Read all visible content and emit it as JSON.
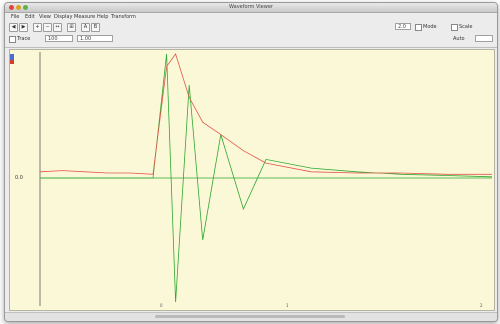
{
  "window": {
    "title": "Waveform Viewer"
  },
  "menu": {
    "items": [
      "File",
      "Edit",
      "View",
      "Display",
      "Measure",
      "Help",
      "Transform"
    ]
  },
  "toolbar": {
    "tools": [
      "◀",
      "▶",
      "+",
      "−",
      "↔",
      "⊞",
      "A",
      "B"
    ],
    "fields": {
      "left_value": "100",
      "right_value": "1.00",
      "top_value": "2.0"
    },
    "labels": {
      "mode": "Mode",
      "scale": "Scale",
      "auto": "Auto",
      "trace": "Trace"
    }
  },
  "plot": {
    "y_label": "0.0",
    "bottom_labels": [
      "0",
      "1",
      "2"
    ],
    "colors": {
      "background": "#fbf8d8",
      "green_trace": "#2fa830",
      "red_trace": "#e2574a",
      "axis": "#5a5a5a"
    }
  },
  "chart_data": {
    "type": "line",
    "x": [
      0,
      0.05,
      0.1,
      0.15,
      0.2,
      0.25,
      0.28,
      0.3,
      0.33,
      0.36,
      0.4,
      0.45,
      0.5,
      0.6,
      0.7,
      0.8,
      0.9,
      1.0
    ],
    "series": [
      {
        "values": [
          0.0,
          0.0,
          0.0,
          0.0,
          0.0,
          0.0,
          1.0,
          -1.0,
          0.75,
          -0.5,
          0.35,
          -0.25,
          0.15,
          0.08,
          0.05,
          0.03,
          0.02,
          0.01
        ]
      },
      {
        "values": [
          0.05,
          0.06,
          0.05,
          0.04,
          0.04,
          0.03,
          0.9,
          1.0,
          0.65,
          0.45,
          0.35,
          0.22,
          0.12,
          0.05,
          0.04,
          0.04,
          0.03,
          0.03
        ]
      }
    ],
    "xlim": [
      0,
      1
    ],
    "ylim": [
      -1,
      1
    ]
  }
}
